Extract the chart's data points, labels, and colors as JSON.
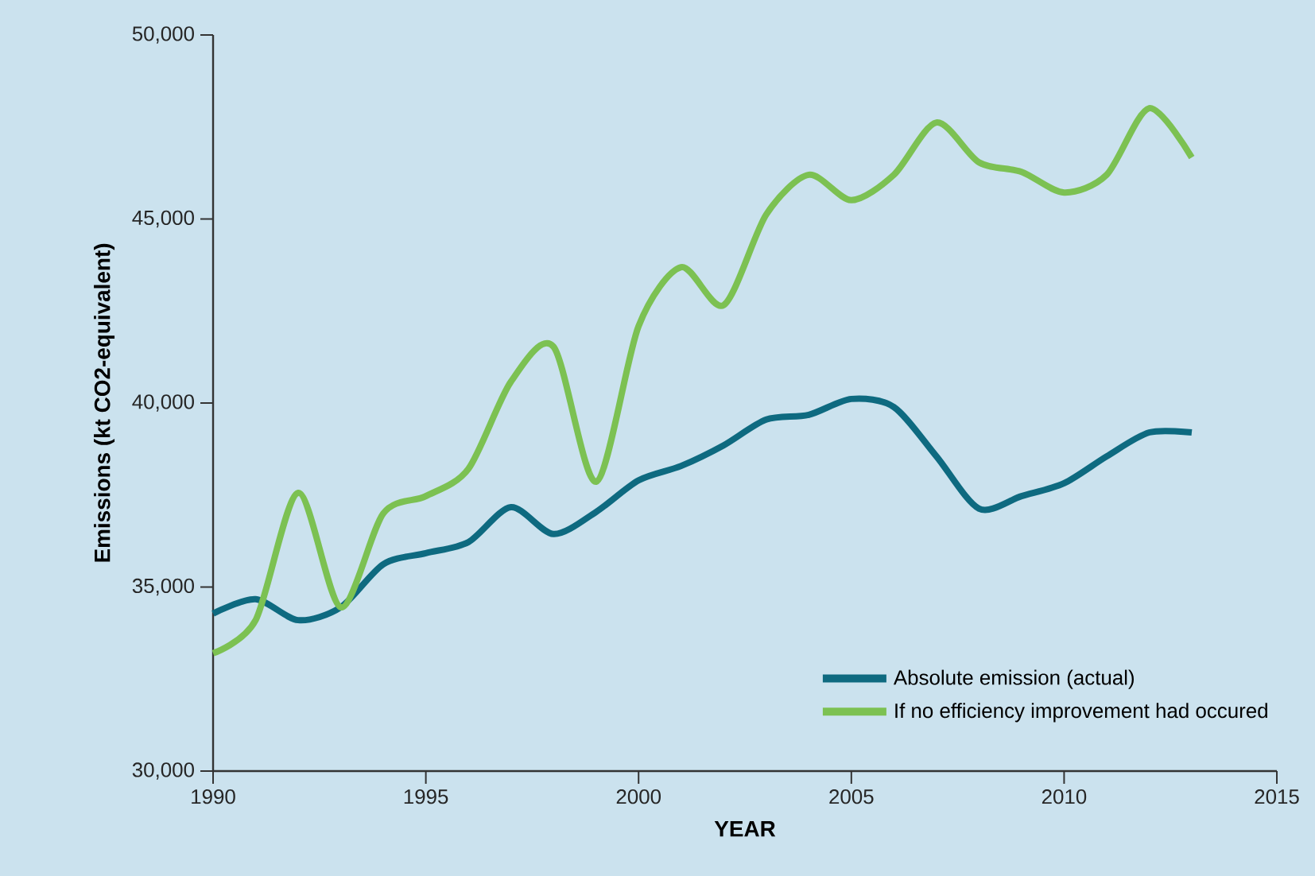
{
  "chart_data": {
    "type": "line",
    "xlabel": "YEAR",
    "ylabel": "Emissions (kt CO2-equivalent)",
    "x": [
      1990,
      1991,
      1992,
      1993,
      1994,
      1995,
      1996,
      1997,
      1998,
      1999,
      2000,
      2001,
      2002,
      2003,
      2004,
      2005,
      2006,
      2007,
      2008,
      2009,
      2010,
      2011,
      2012,
      2013
    ],
    "series": [
      {
        "name": "Absolute emission (actual)",
        "color": "#0e6a80",
        "values": [
          34280,
          34670,
          34100,
          34450,
          35620,
          35920,
          36220,
          37170,
          36440,
          37040,
          37900,
          38290,
          38850,
          39550,
          39680,
          40110,
          39890,
          38550,
          37130,
          37470,
          37820,
          38550,
          39200,
          39200
        ]
      },
      {
        "name": "If no efficiency improvement had occured",
        "color": "#7cc152",
        "values": [
          33200,
          34100,
          37560,
          34450,
          37000,
          37470,
          38210,
          40580,
          41530,
          37860,
          42090,
          43690,
          42660,
          45120,
          46200,
          45510,
          46200,
          47620,
          46540,
          46280,
          45720,
          46200,
          48010,
          46670
        ]
      }
    ],
    "xlim": [
      1990,
      2015
    ],
    "xticks": [
      1990,
      1995,
      2000,
      2005,
      2010,
      2015
    ],
    "ylim": [
      30000,
      50000
    ],
    "yticks": [
      {
        "value": 30000,
        "label": "30,000"
      },
      {
        "value": 35000,
        "label": "35,000"
      },
      {
        "value": 40000,
        "label": "40,000"
      },
      {
        "value": 45000,
        "label": "45,000"
      },
      {
        "value": 50000,
        "label": "50,000"
      }
    ],
    "grid": false,
    "legend": "bottom right",
    "marker": "none",
    "line_style": "solid"
  }
}
